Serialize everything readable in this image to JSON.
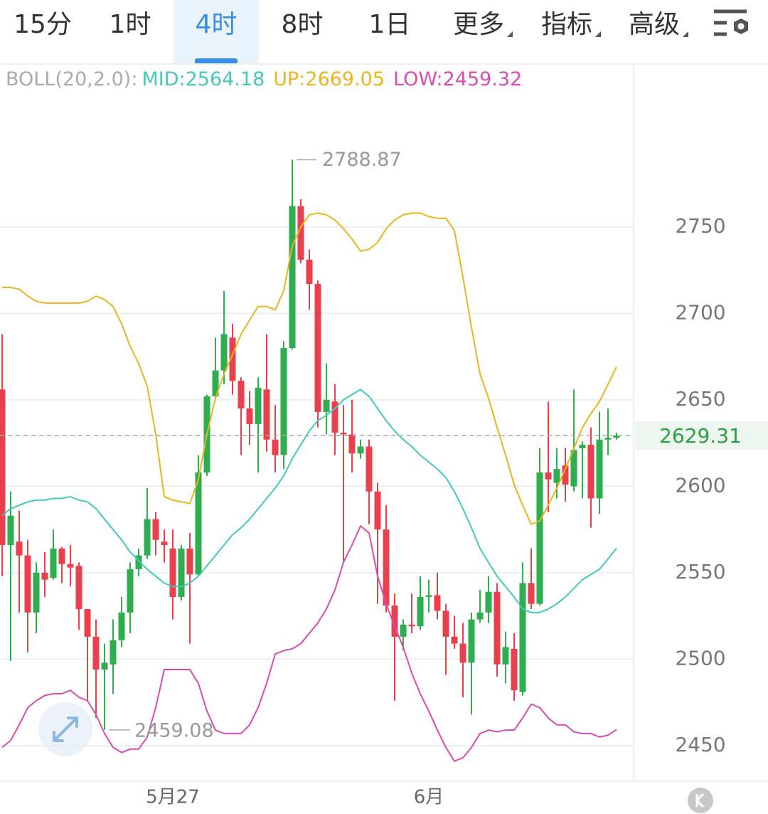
{
  "toolbar": {
    "tabs": [
      "15分",
      "1时",
      "4时",
      "8时",
      "1日",
      "更多",
      "指标",
      "高级"
    ],
    "active": 2
  },
  "chart_data": {
    "type": "candlestick",
    "indicator": "BOLL(20,2.0):",
    "categories": [
      null,
      null,
      null,
      null,
      null,
      null,
      null,
      null,
      null,
      null,
      null,
      null,
      null,
      null,
      null,
      null,
      null,
      null,
      null,
      null,
      "5月27",
      null,
      null,
      null,
      null,
      null,
      null,
      null,
      null,
      null,
      null,
      null,
      null,
      null,
      null,
      null,
      null,
      null,
      null,
      null,
      null,
      null,
      null,
      null,
      null,
      null,
      null,
      null,
      null,
      null,
      "6月",
      null,
      null,
      null,
      null,
      null,
      null,
      null,
      null,
      null,
      null,
      null,
      null,
      null,
      null,
      null,
      null,
      null,
      null,
      null,
      null,
      null,
      null
    ],
    "open": [
      2656,
      2566,
      2568,
      2560,
      2527,
      2550,
      2547,
      2564,
      2555,
      2554,
      2529,
      2513,
      2494,
      2497,
      2511,
      2527,
      2552,
      2560,
      2581,
      2568,
      2564,
      2536,
      2564,
      2549,
      2608,
      2652,
      2667,
      2686,
      2661,
      2645,
      2636,
      2656,
      2627,
      2618,
      2680,
      2762,
      2731,
      2717,
      2643,
      2649,
      2631,
      2630,
      2619,
      2623,
      2597,
      2575,
      2531,
      2513,
      2520,
      2519,
      2536,
      2537,
      2528,
      2513,
      2509,
      2498,
      2523,
      2527,
      2539,
      2497,
      2506,
      2481,
      2544,
      2532,
      2608,
      2602,
      2612,
      2600,
      2622,
      2624,
      2593,
      2627,
      2628
    ],
    "high": [
      2688,
      2597,
      2586,
      2569,
      2556,
      2562,
      2575,
      2565,
      2566,
      2556,
      2529,
      2523,
      2509,
      2523,
      2536,
      2556,
      2564,
      2599,
      2585,
      2575,
      2575,
      2566,
      2573,
      2618,
      2653,
      2686,
      2713,
      2694,
      2663,
      2655,
      2663,
      2688,
      2647,
      2684,
      2788.87,
      2766,
      2737,
      2719,
      2671,
      2659,
      2647,
      2650,
      2627,
      2627,
      2602,
      2589,
      2538,
      2523,
      2538,
      2548,
      2546,
      2550,
      2532,
      2525,
      2521,
      2527,
      2540,
      2548,
      2544,
      2516,
      2515,
      2556,
      2564,
      2622,
      2649,
      2622,
      2622,
      2656,
      2626,
      2634,
      2643,
      2645,
      2631
    ],
    "low": [
      2548,
      2499,
      2527,
      2504,
      2515,
      2536,
      2546,
      2544,
      2542,
      2517,
      2476,
      2466,
      2459.08,
      2480,
      2507,
      2515,
      2548,
      2558,
      2560,
      2556,
      2523,
      2534,
      2509,
      2548,
      2606,
      2651,
      2659,
      2653,
      2618,
      2624,
      2608,
      2620,
      2608,
      2610,
      2679,
      2729,
      2702,
      2634,
      2630,
      2618,
      2556,
      2608,
      2616,
      2578,
      2532,
      2527,
      2476,
      2505,
      2515,
      2517,
      2527,
      2523,
      2491,
      2506,
      2478,
      2468,
      2521,
      2521,
      2490,
      2486,
      2476,
      2479,
      2529,
      2531,
      2585,
      2593,
      2591,
      2597,
      2593,
      2576,
      2584,
      2618,
      2627
    ],
    "close": [
      2566,
      2583,
      2560,
      2527,
      2550,
      2546,
      2564,
      2555,
      2553,
      2529,
      2513,
      2494,
      2498,
      2511,
      2527,
      2552,
      2560,
      2581,
      2569,
      2566,
      2536,
      2564,
      2549,
      2608,
      2652,
      2667,
      2688,
      2661,
      2645,
      2636,
      2657,
      2627,
      2618,
      2680,
      2762,
      2731,
      2717,
      2643,
      2650,
      2631,
      2630,
      2619,
      2623,
      2597,
      2575,
      2531,
      2513,
      2520,
      2519,
      2536,
      2537,
      2528,
      2513,
      2509,
      2498,
      2523,
      2527,
      2539,
      2497,
      2507,
      2482,
      2544,
      2532,
      2608,
      2604,
      2610,
      2601,
      2621,
      2624,
      2593,
      2627,
      2628,
      2629.31
    ],
    "up_color": "#2eae4e",
    "down_color": "#e8404d",
    "series": [
      {
        "name": "MID:",
        "color": "#45c9b8",
        "values": [
          2583,
          2587,
          2589,
          2591,
          2592,
          2592,
          2593,
          2593,
          2594,
          2592,
          2591,
          2587,
          2581,
          2575,
          2569,
          2562,
          2557,
          2552,
          2548,
          2544,
          2542,
          2542,
          2544,
          2548,
          2554,
          2560,
          2566,
          2572,
          2576,
          2581,
          2587,
          2593,
          2599,
          2606,
          2616,
          2624,
          2632,
          2638,
          2641,
          2645,
          2650,
          2653,
          2656,
          2652,
          2645,
          2638,
          2632,
          2627,
          2623,
          2618,
          2614,
          2610,
          2605,
          2597,
          2587,
          2576,
          2564,
          2556,
          2548,
          2542,
          2536,
          2529,
          2527,
          2527,
          2529,
          2532,
          2536,
          2541,
          2546,
          2549,
          2552,
          2558,
          2564.18
        ]
      },
      {
        "name": "UP:",
        "color": "#eab51d",
        "values": [
          2715,
          2715,
          2714,
          2710,
          2707,
          2706,
          2706,
          2706,
          2706,
          2706,
          2707,
          2710,
          2708,
          2704,
          2694,
          2681,
          2671,
          2658,
          2630,
          2594,
          2592,
          2591,
          2590,
          2604,
          2630,
          2651,
          2665,
          2676,
          2688,
          2696,
          2704,
          2704,
          2702,
          2713,
          2739,
          2750,
          2757,
          2758,
          2757,
          2754,
          2749,
          2743,
          2736,
          2737,
          2741,
          2749,
          2754,
          2757,
          2758,
          2758,
          2756,
          2755,
          2755,
          2748,
          2721,
          2692,
          2665,
          2651,
          2634,
          2618,
          2601,
          2589,
          2578,
          2580,
          2589,
          2599,
          2610,
          2622,
          2634,
          2642,
          2649,
          2659,
          2669.05
        ]
      },
      {
        "name": "LOW:",
        "color": "#d94db0",
        "values": [
          2449,
          2453,
          2462,
          2472,
          2476,
          2479,
          2480,
          2480,
          2482,
          2478,
          2476,
          2468,
          2457,
          2449,
          2446,
          2448,
          2448,
          2455,
          2472,
          2494,
          2494,
          2494,
          2494,
          2486,
          2470,
          2459,
          2457,
          2457,
          2457,
          2462,
          2472,
          2486,
          2503,
          2505,
          2506,
          2509,
          2515,
          2521,
          2529,
          2540,
          2556,
          2566,
          2577,
          2573,
          2548,
          2532,
          2519,
          2507,
          2492,
          2480,
          2470,
          2459,
          2449,
          2441,
          2443,
          2449,
          2457,
          2459,
          2458,
          2459,
          2459,
          2466,
          2474,
          2472,
          2466,
          2462,
          2462,
          2458,
          2457,
          2457,
          2455,
          2456,
          2459.32
        ]
      }
    ],
    "ylim": [
      2429.4,
      2844.2
    ],
    "yticks": [
      2450,
      2500,
      2550,
      2600,
      2650,
      2700,
      2750
    ],
    "grid": true,
    "last_price_color": "#2e9e45"
  }
}
